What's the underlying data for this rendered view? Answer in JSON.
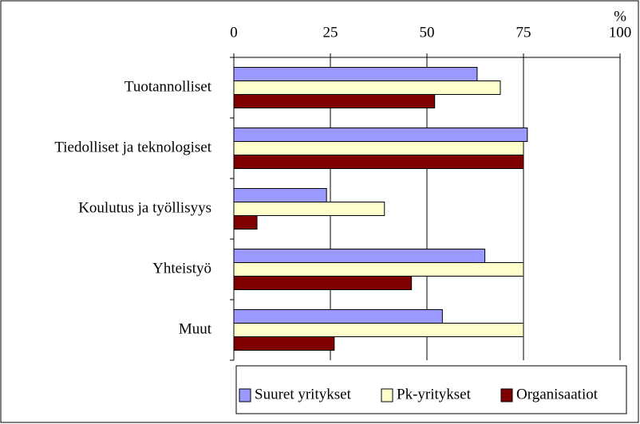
{
  "chart_data": {
    "type": "bar",
    "orientation": "horizontal",
    "x_label": "%",
    "categories": [
      "Tuotannolliset",
      "Tiedolliset ja teknologiset",
      "Koulutus ja työllisyys",
      "Yhteistyö",
      "Muut"
    ],
    "series": [
      {
        "name": "Suuret yritykset",
        "color": "#9999ff",
        "values": [
          63,
          76,
          24,
          65,
          54
        ]
      },
      {
        "name": "Pk-yritykset",
        "color": "#ffffcc",
        "values": [
          69,
          75,
          39,
          75,
          75
        ]
      },
      {
        "name": "Organisaatiot",
        "color": "#800000",
        "values": [
          52,
          75,
          6,
          46,
          26
        ]
      }
    ],
    "xlim": [
      0,
      100
    ],
    "xticks": [
      0,
      25,
      50,
      75,
      100
    ],
    "grid": true,
    "legend": "bottom"
  }
}
